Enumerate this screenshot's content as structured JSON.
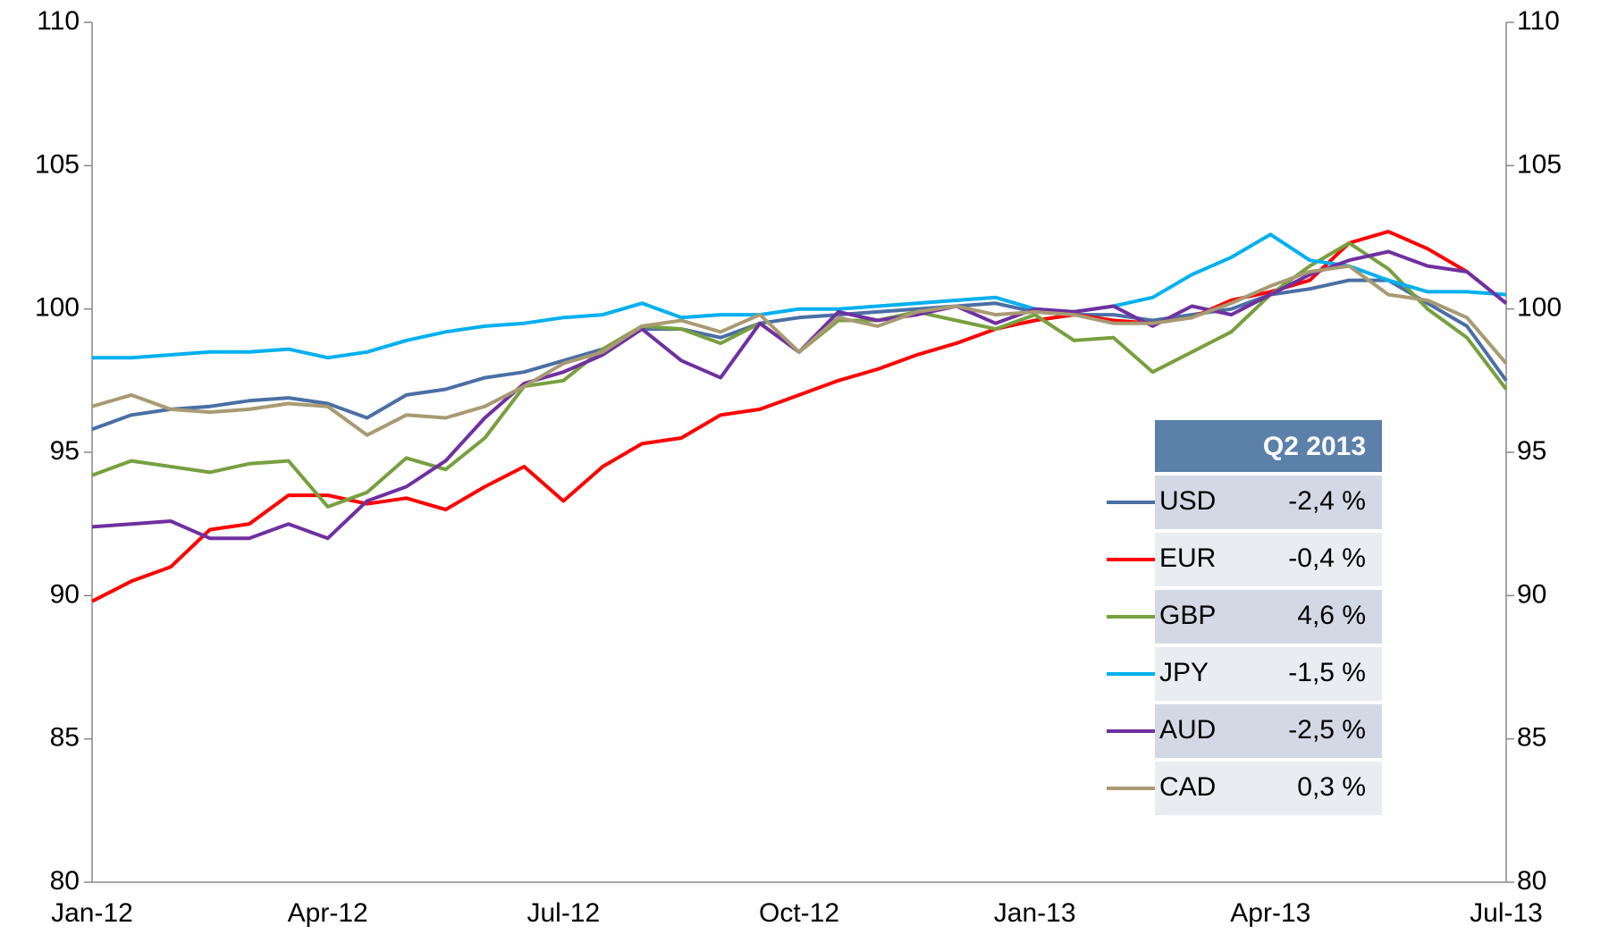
{
  "chart_data": {
    "type": "line",
    "x": [
      "Jan-12",
      null,
      null,
      null,
      null,
      null,
      "Apr-12",
      null,
      null,
      null,
      null,
      null,
      "Jul-12",
      null,
      null,
      null,
      null,
      null,
      "Oct-12",
      null,
      null,
      null,
      null,
      null,
      "Jan-13",
      null,
      null,
      null,
      null,
      null,
      "Apr-13",
      null,
      null,
      null,
      null,
      null,
      "Jul-13"
    ],
    "ylim": [
      80,
      110
    ],
    "yticks": [
      80,
      85,
      90,
      95,
      100,
      105,
      110
    ],
    "y2lim": [
      80,
      110
    ],
    "y2ticks": [
      80,
      85,
      90,
      95,
      100,
      105,
      110
    ],
    "series": [
      {
        "name": "USD",
        "color": "#4a6fa5",
        "values": [
          95.8,
          96.3,
          96.5,
          96.6,
          96.8,
          96.9,
          96.7,
          96.2,
          97.0,
          97.2,
          97.6,
          97.8,
          98.2,
          98.6,
          99.3,
          99.3,
          99.0,
          99.5,
          99.7,
          99.8,
          99.9,
          100.0,
          100.1,
          100.2,
          99.9,
          99.8,
          99.8,
          99.6,
          99.8,
          100.0,
          100.5,
          100.7,
          101.0,
          101.0,
          100.2,
          99.4,
          97.5
        ]
      },
      {
        "name": "EUR",
        "color": "#ff0000",
        "values": [
          89.8,
          90.5,
          91.0,
          92.3,
          92.5,
          93.5,
          93.5,
          93.2,
          93.4,
          93.0,
          93.8,
          94.5,
          93.3,
          94.5,
          95.3,
          95.5,
          96.3,
          96.5,
          97.0,
          97.5,
          97.9,
          98.4,
          98.8,
          99.3,
          99.6,
          99.8,
          99.6,
          99.5,
          99.7,
          100.3,
          100.6,
          101.0,
          102.3,
          102.7,
          102.1,
          101.3,
          100.2
        ]
      },
      {
        "name": "GBP",
        "color": "#77a03f",
        "values": [
          94.2,
          94.7,
          94.5,
          94.3,
          94.6,
          94.7,
          93.1,
          93.6,
          94.8,
          94.4,
          95.5,
          97.3,
          97.5,
          98.6,
          99.4,
          99.3,
          98.8,
          99.5,
          98.5,
          99.6,
          99.6,
          99.9,
          99.6,
          99.3,
          99.8,
          98.9,
          99.0,
          97.8,
          98.5,
          99.2,
          100.5,
          101.5,
          102.3,
          101.4,
          100.0,
          99.0,
          97.2
        ]
      },
      {
        "name": "JPY",
        "color": "#00b0f0",
        "values": [
          98.3,
          98.3,
          98.4,
          98.5,
          98.5,
          98.6,
          98.3,
          98.5,
          98.9,
          99.2,
          99.4,
          99.5,
          99.7,
          99.8,
          100.2,
          99.7,
          99.8,
          99.8,
          100.0,
          100.0,
          100.1,
          100.2,
          100.3,
          100.4,
          100.0,
          99.9,
          100.1,
          100.4,
          101.2,
          101.8,
          102.6,
          101.7,
          101.5,
          101.0,
          100.6,
          100.6,
          100.5
        ]
      },
      {
        "name": "AUD",
        "color": "#7030a0",
        "values": [
          92.4,
          92.5,
          92.6,
          92.0,
          92.0,
          92.5,
          92.0,
          93.3,
          93.8,
          94.7,
          96.2,
          97.4,
          97.8,
          98.4,
          99.3,
          98.2,
          97.6,
          99.5,
          98.5,
          99.9,
          99.6,
          99.8,
          100.1,
          99.5,
          100.0,
          99.9,
          100.1,
          99.4,
          100.1,
          99.8,
          100.5,
          101.2,
          101.7,
          102.0,
          101.5,
          101.3,
          100.2
        ]
      },
      {
        "name": "CAD",
        "color": "#a89a72",
        "values": [
          96.6,
          97.0,
          96.5,
          96.4,
          96.5,
          96.7,
          96.6,
          95.6,
          96.3,
          96.2,
          96.6,
          97.3,
          98.1,
          98.5,
          99.4,
          99.6,
          99.2,
          99.8,
          98.5,
          99.7,
          99.4,
          99.9,
          100.1,
          99.8,
          99.9,
          99.8,
          99.5,
          99.5,
          99.7,
          100.2,
          100.8,
          101.3,
          101.5,
          100.5,
          100.3,
          99.7,
          98.1
        ]
      }
    ],
    "legend_table": {
      "title": "Q2 2013",
      "header_color": "#5b80aa",
      "values": [
        -2.4,
        -0.4,
        4.6,
        -1.5,
        -2.5,
        0.3
      ],
      "value_labels": [
        "-2,4 %",
        "-0,4 %",
        "4,6 %",
        "-1,5 %",
        "-2,5 %",
        "0,3 %"
      ]
    }
  }
}
